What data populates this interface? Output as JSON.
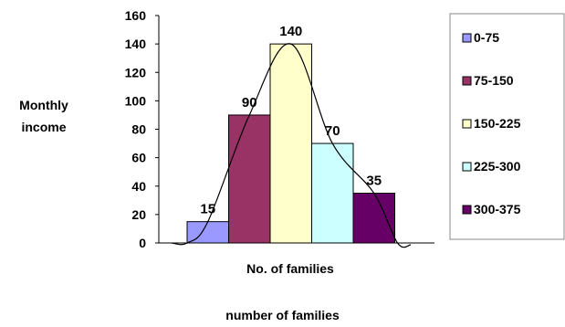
{
  "chart_data": {
    "type": "bar",
    "categories": [
      "0-75",
      "75-150",
      "150-225",
      "225-300",
      "300-375"
    ],
    "values": [
      15,
      90,
      140,
      70,
      35
    ],
    "data_labels": [
      "15",
      "90",
      "140",
      "70",
      "35"
    ],
    "colors": [
      "#9999ff",
      "#993366",
      "#ffffcc",
      "#ccffff",
      "#660066"
    ],
    "ylabel_lines": [
      "Monthly",
      "income"
    ],
    "xlabel": "No. of families",
    "ylim": [
      0,
      160
    ],
    "yticks": [
      0,
      20,
      40,
      60,
      80,
      100,
      120,
      140,
      160
    ],
    "grid": false,
    "legend_position": "right",
    "overlay": "smooth frequency curve through bar tops",
    "caption": "number of families"
  }
}
